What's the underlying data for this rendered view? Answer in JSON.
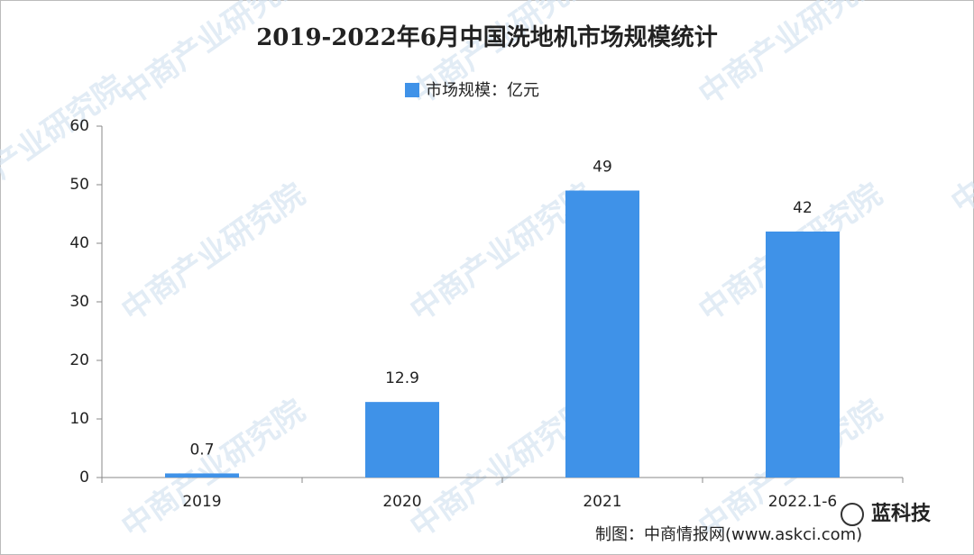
{
  "chart_data": {
    "type": "bar",
    "title": "2019-2022年6月中国洗地机市场规模统计",
    "legend": "市场规模：亿元",
    "categories": [
      "2019",
      "2020",
      "2021",
      "2022.1-6"
    ],
    "values": [
      0.7,
      12.9,
      49,
      42
    ],
    "color": "#3f92e8",
    "ylim": [
      0,
      60
    ],
    "yticks": [
      0,
      10,
      20,
      30,
      40,
      50,
      60
    ],
    "grid": false,
    "source": "制图：中商情报网(www.askci.com)",
    "watermark": "中商产业研究院",
    "badge": "蓝科技"
  }
}
